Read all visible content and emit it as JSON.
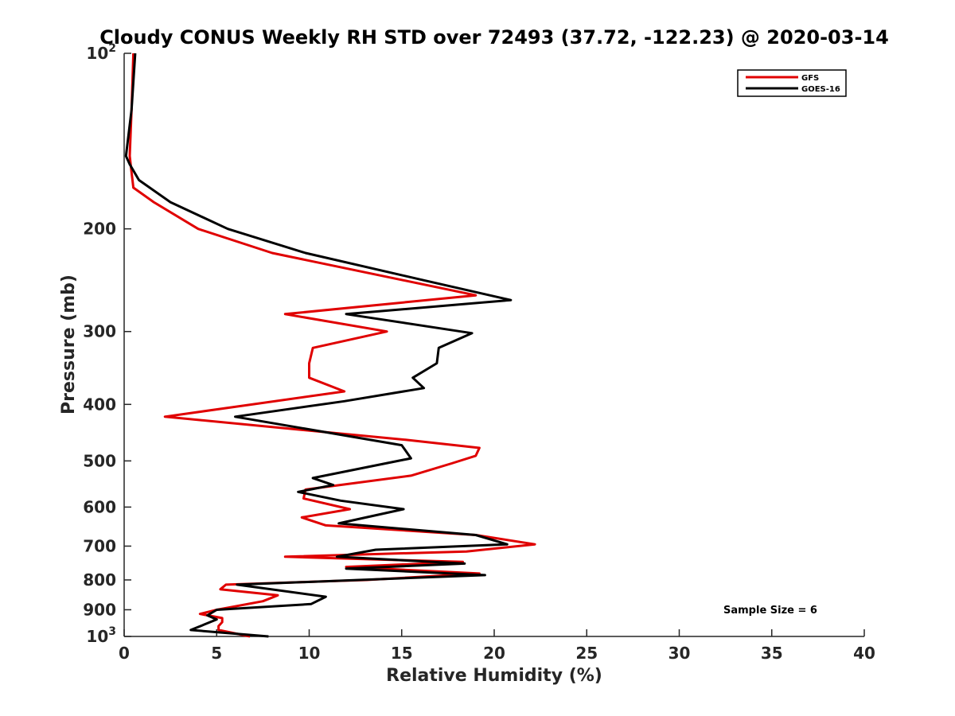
{
  "chart_data": {
    "type": "line",
    "title": "Cloudy CONUS Weekly RH STD over 72493 (37.72, -122.23) @ 2020-03-14",
    "xlabel": "Relative Humidity (%)",
    "ylabel": "Pressure (mb)",
    "xlim": [
      0,
      40
    ],
    "ylim": [
      100,
      1000
    ],
    "y_scale": "log",
    "y_reversed": true,
    "grid": false,
    "legend_position": "top-right",
    "x_ticks": [
      "0",
      "5",
      "10",
      "15",
      "20",
      "25",
      "30",
      "35",
      "40"
    ],
    "x_tick_values": [
      0,
      5,
      10,
      15,
      20,
      25,
      30,
      35,
      40
    ],
    "y_ticks": [
      {
        "value": 100,
        "base": "10",
        "exp": "2",
        "text": ""
      },
      {
        "value": 200,
        "base": "",
        "exp": "",
        "text": "200"
      },
      {
        "value": 300,
        "base": "",
        "exp": "",
        "text": "300"
      },
      {
        "value": 400,
        "base": "",
        "exp": "",
        "text": "400"
      },
      {
        "value": 500,
        "base": "",
        "exp": "",
        "text": "500"
      },
      {
        "value": 600,
        "base": "",
        "exp": "",
        "text": "600"
      },
      {
        "value": 700,
        "base": "",
        "exp": "",
        "text": "700"
      },
      {
        "value": 800,
        "base": "",
        "exp": "",
        "text": "800"
      },
      {
        "value": 900,
        "base": "",
        "exp": "",
        "text": "900"
      },
      {
        "value": 1000,
        "base": "10",
        "exp": "3",
        "text": ""
      }
    ],
    "annotation": "Sample Size = 6",
    "series": [
      {
        "name": "GFS",
        "color": "#e00000",
        "points": [
          [
            0.5,
            100
          ],
          [
            0.4,
            125
          ],
          [
            0.3,
            150
          ],
          [
            0.4,
            160
          ],
          [
            0.5,
            170
          ],
          [
            1.6,
            180
          ],
          [
            4.0,
            200
          ],
          [
            8.0,
            220
          ],
          [
            19.0,
            260
          ],
          [
            8.7,
            280
          ],
          [
            14.2,
            300
          ],
          [
            10.2,
            320
          ],
          [
            10.0,
            340
          ],
          [
            10.0,
            360
          ],
          [
            11.9,
            380
          ],
          [
            2.2,
            420
          ],
          [
            15.2,
            460
          ],
          [
            19.2,
            475
          ],
          [
            19.0,
            490
          ],
          [
            17.7,
            505
          ],
          [
            15.5,
            530
          ],
          [
            9.8,
            560
          ],
          [
            9.7,
            580
          ],
          [
            12.2,
            605
          ],
          [
            9.6,
            625
          ],
          [
            10.9,
            645
          ],
          [
            19.0,
            670
          ],
          [
            22.2,
            695
          ],
          [
            18.5,
            715
          ],
          [
            8.7,
            730
          ],
          [
            18.3,
            745
          ],
          [
            12.0,
            760
          ],
          [
            19.2,
            780
          ],
          [
            13.1,
            800
          ],
          [
            5.5,
            815
          ],
          [
            5.2,
            830
          ],
          [
            8.3,
            850
          ],
          [
            7.5,
            870
          ],
          [
            5.0,
            900
          ],
          [
            4.1,
            915
          ],
          [
            5.3,
            930
          ],
          [
            5.3,
            945
          ],
          [
            5.1,
            960
          ],
          [
            5.1,
            975
          ],
          [
            6.8,
            1000
          ]
        ]
      },
      {
        "name": "GOES-16",
        "color": "#000000",
        "points": [
          [
            0.6,
            100
          ],
          [
            0.4,
            125
          ],
          [
            0.1,
            150
          ],
          [
            0.3,
            155
          ],
          [
            0.8,
            165
          ],
          [
            2.5,
            180
          ],
          [
            5.6,
            200
          ],
          [
            9.8,
            220
          ],
          [
            16.2,
            245
          ],
          [
            20.9,
            265
          ],
          [
            12.0,
            280
          ],
          [
            18.8,
            302
          ],
          [
            17.0,
            320
          ],
          [
            16.9,
            340
          ],
          [
            15.6,
            360
          ],
          [
            16.2,
            375
          ],
          [
            11.9,
            395
          ],
          [
            6.0,
            420
          ],
          [
            15.0,
            470
          ],
          [
            15.5,
            495
          ],
          [
            10.2,
            535
          ],
          [
            11.3,
            550
          ],
          [
            9.4,
            565
          ],
          [
            11.7,
            585
          ],
          [
            15.1,
            605
          ],
          [
            11.6,
            640
          ],
          [
            19.0,
            670
          ],
          [
            20.7,
            695
          ],
          [
            13.6,
            710
          ],
          [
            11.5,
            730
          ],
          [
            18.4,
            750
          ],
          [
            12.0,
            765
          ],
          [
            19.5,
            785
          ],
          [
            6.1,
            815
          ],
          [
            10.9,
            855
          ],
          [
            10.1,
            880
          ],
          [
            5.0,
            900
          ],
          [
            4.5,
            920
          ],
          [
            5.0,
            935
          ],
          [
            4.3,
            955
          ],
          [
            3.6,
            975
          ],
          [
            7.8,
            1000
          ]
        ]
      }
    ]
  }
}
